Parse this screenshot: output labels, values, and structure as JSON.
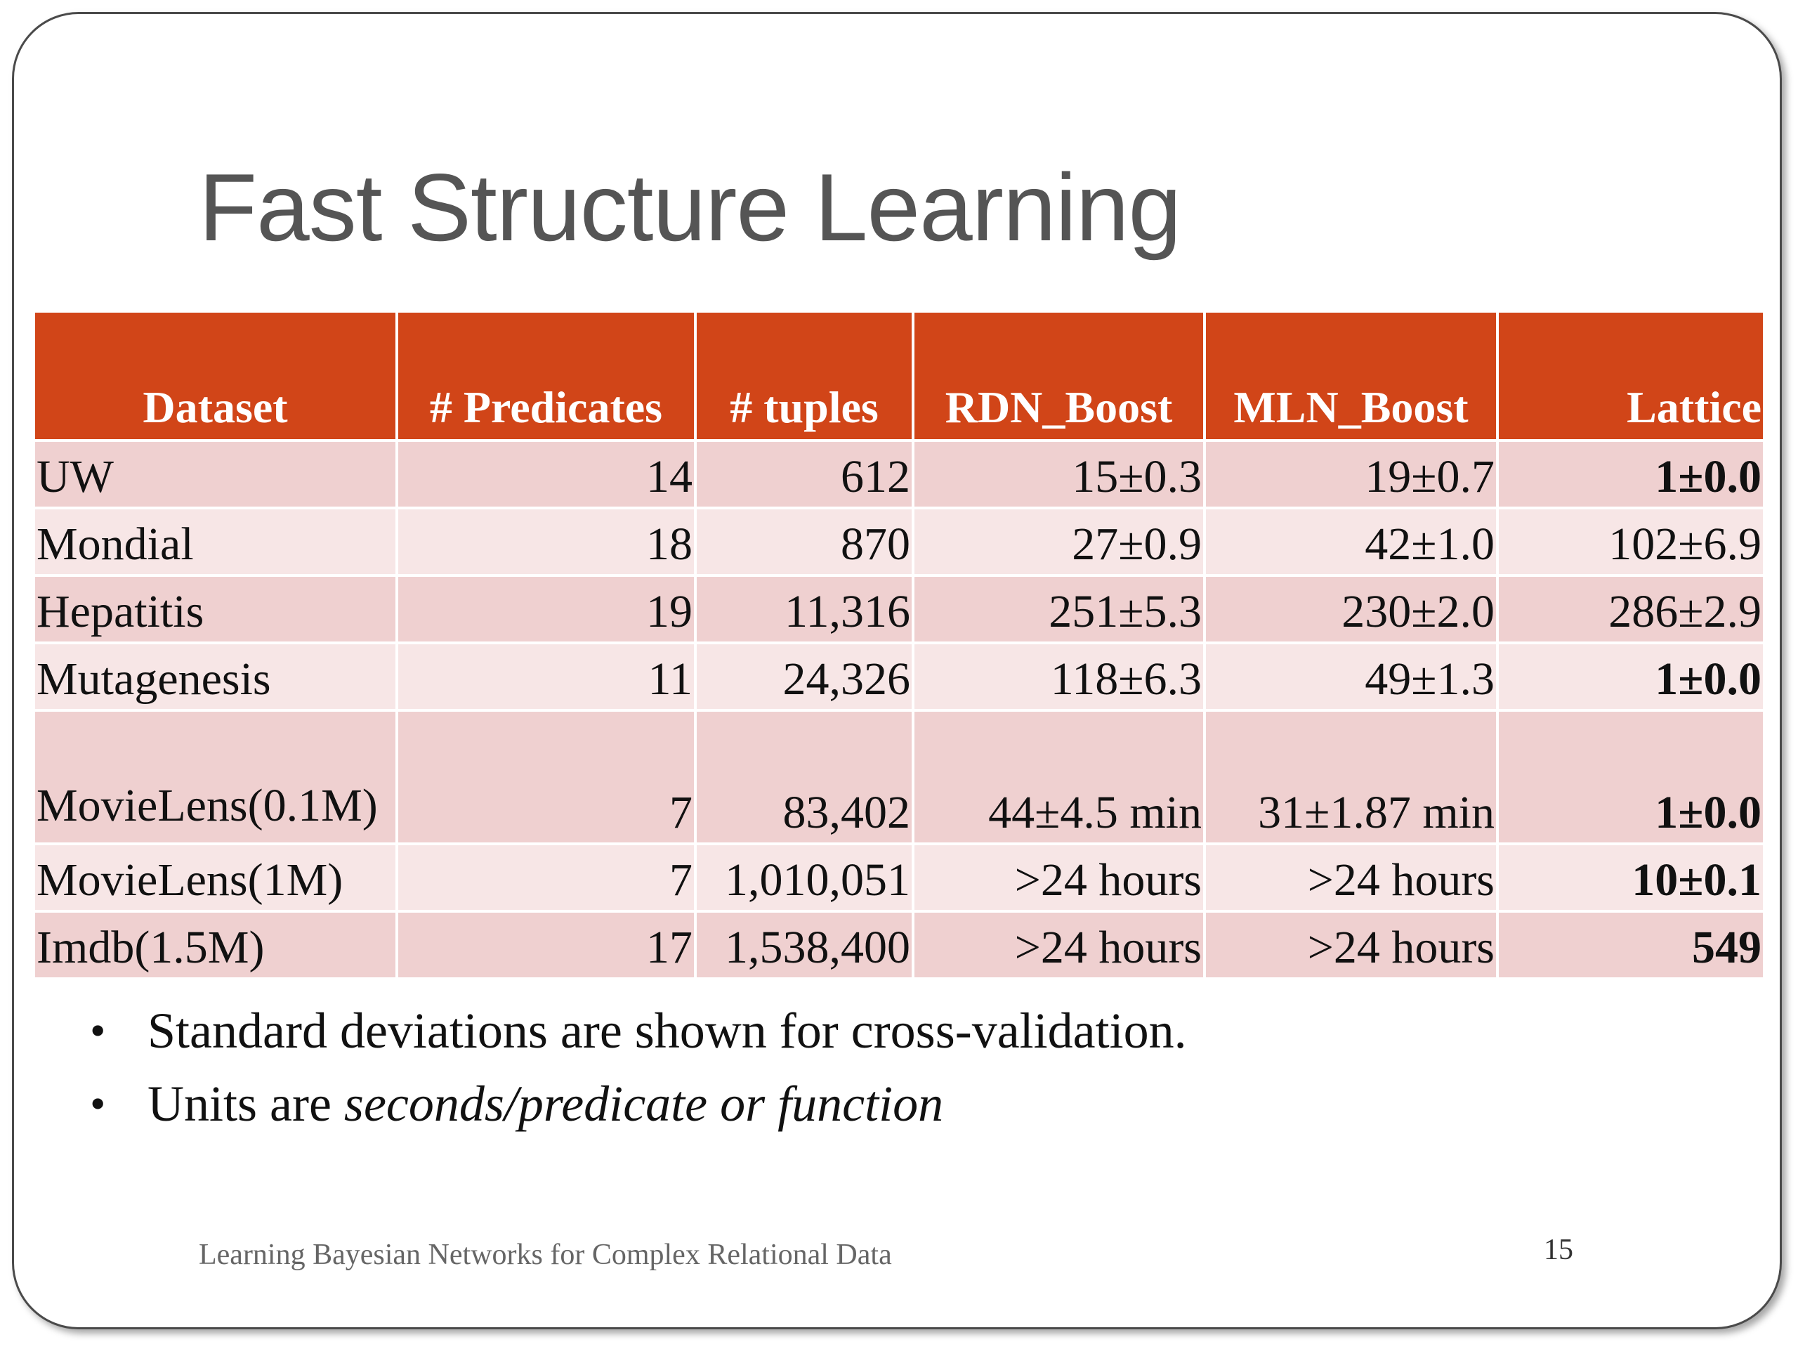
{
  "slide": {
    "title": "Fast Structure Learning",
    "footer": "Learning Bayesian Networks for Complex Relational Data",
    "page_number": "15"
  },
  "table": {
    "headers": [
      "Dataset",
      "# Predicates",
      "# tuples",
      "RDN_Boost",
      "MLN_Boost",
      "Lattice"
    ],
    "rows": [
      {
        "dataset": "UW",
        "predicates": "14",
        "tuples": "612",
        "rdn": "15±0.3",
        "mln": "19±0.7",
        "lattice": "1±0.0",
        "lattice_bold": true
      },
      {
        "dataset": "Mondial",
        "predicates": "18",
        "tuples": "870",
        "rdn": "27±0.9",
        "mln": "42±1.0",
        "lattice": "102±6.9",
        "lattice_bold": false
      },
      {
        "dataset": "Hepatitis",
        "predicates": "19",
        "tuples": "11,316",
        "rdn": "251±5.3",
        "mln": "230±2.0",
        "lattice": "286±2.9",
        "lattice_bold": false
      },
      {
        "dataset": "Mutagenesis",
        "predicates": "11",
        "tuples": "24,326",
        "rdn": "118±6.3",
        "mln": "49±1.3",
        "lattice": "1±0.0",
        "lattice_bold": true
      },
      {
        "dataset": "MovieLens(0.1M)",
        "predicates": "7",
        "tuples": "83,402",
        "rdn": "44±4.5 min",
        "mln": "31±1.87 min",
        "lattice": "1±0.0",
        "lattice_bold": true
      },
      {
        "dataset": "MovieLens(1M)",
        "predicates": "7",
        "tuples": "1,010,051",
        "rdn": ">24 hours",
        "mln": ">24 hours",
        "lattice": "10±0.1",
        "lattice_bold": true
      },
      {
        "dataset": "Imdb(1.5M)",
        "predicates": "17",
        "tuples": "1,538,400",
        "rdn": ">24 hours",
        "mln": ">24 hours",
        "lattice": "549",
        "lattice_bold": true
      }
    ]
  },
  "bullets": {
    "b1": "Standard deviations are shown for cross-validation.",
    "b2_prefix": "Units are ",
    "b2_italic": "seconds/predicate or function"
  }
}
